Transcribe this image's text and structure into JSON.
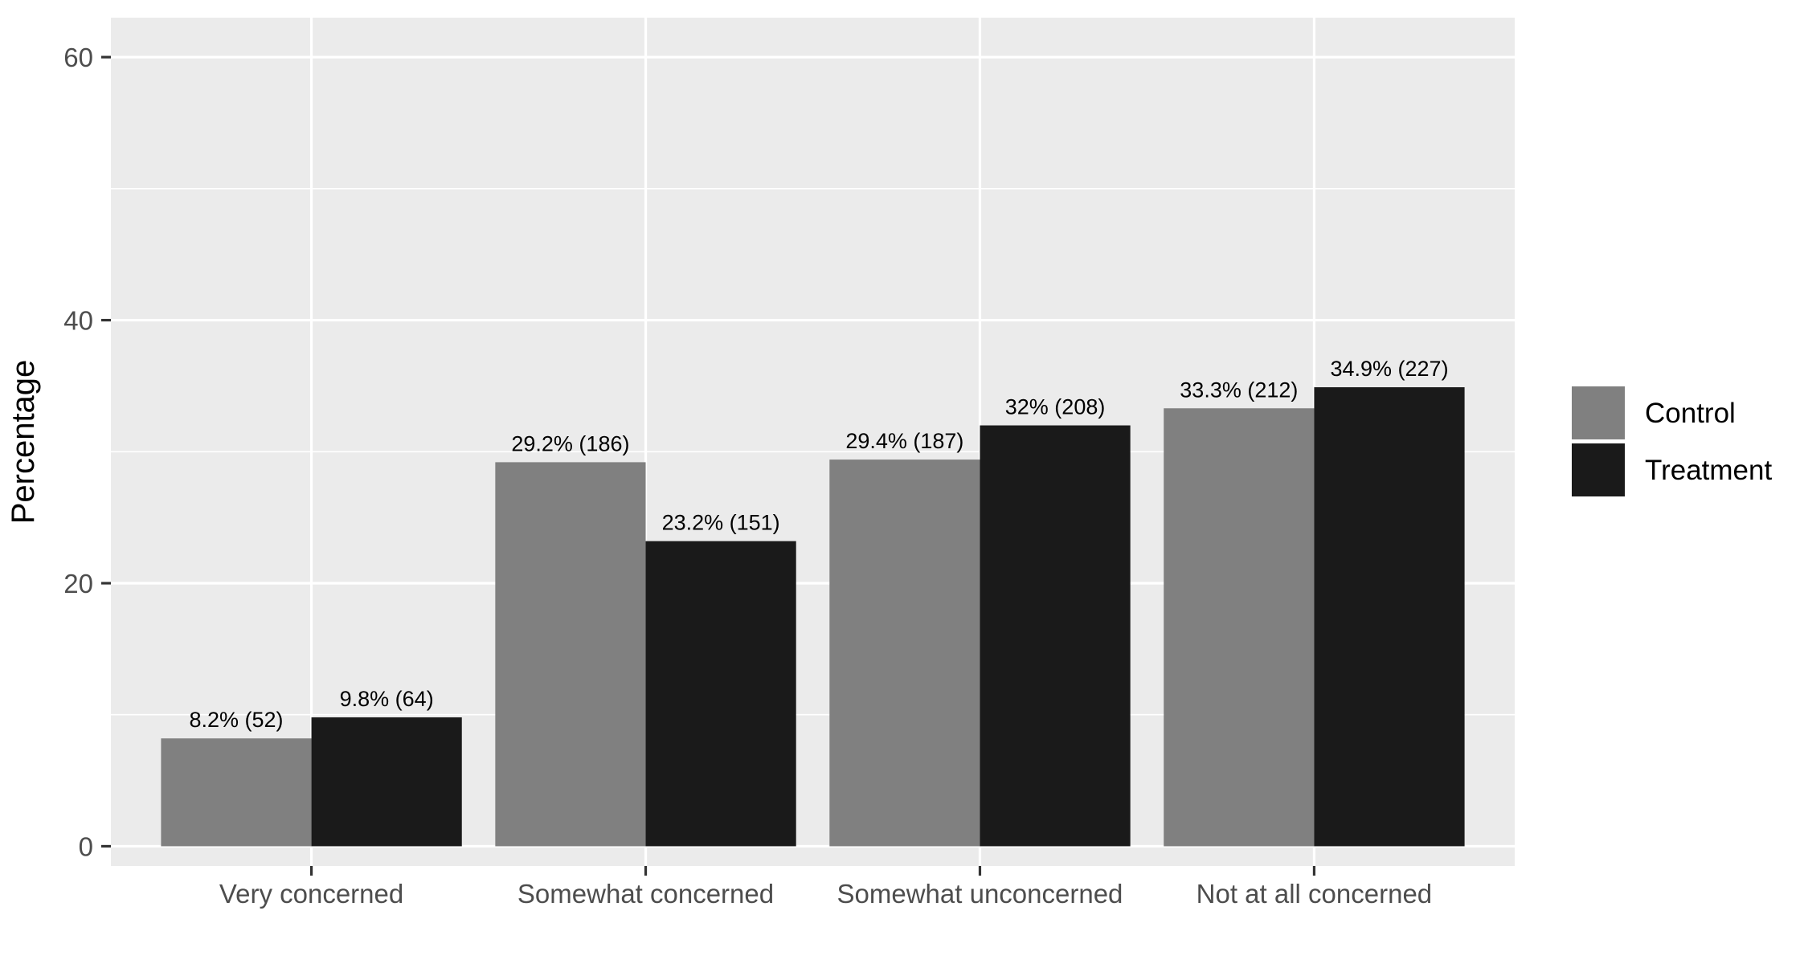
{
  "chart_data": {
    "type": "bar",
    "title": "",
    "xlabel": "",
    "ylabel": "Percentage",
    "ylim": [
      -1.5,
      63
    ],
    "yticks": [
      0,
      20,
      40,
      60
    ],
    "grid": true,
    "legend_position": "right",
    "categories": [
      "Very concerned",
      "Somewhat concerned",
      "Somewhat unconcerned",
      "Not at all concerned"
    ],
    "series": [
      {
        "name": "Control",
        "color": "#808080",
        "values": [
          8.2,
          29.2,
          29.4,
          33.3
        ],
        "labels": [
          "8.2% (52)",
          "29.2% (186)",
          "29.4% (187)",
          "33.3% (212)"
        ]
      },
      {
        "name": "Treatment",
        "color": "#1a1a1a",
        "values": [
          9.8,
          23.2,
          32,
          34.9
        ],
        "labels": [
          "9.8% (64)",
          "23.2% (151)",
          "32% (208)",
          "34.9% (227)"
        ]
      }
    ],
    "panel_background": "#ebebeb",
    "grid_color": "#ffffff"
  }
}
